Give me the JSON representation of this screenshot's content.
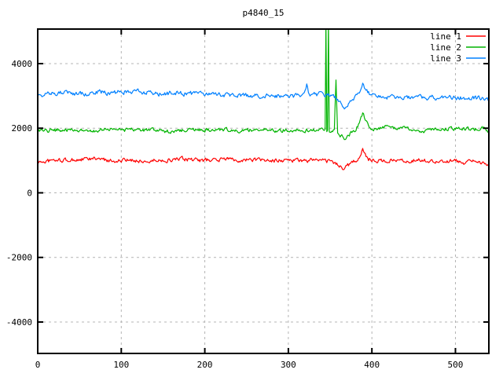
{
  "title": "p4840_15",
  "chart_data": {
    "type": "line",
    "title": "p4840_15",
    "xlabel": "",
    "ylabel": "",
    "xlim": [
      0,
      540
    ],
    "ylim": [
      -4973,
      5070
    ],
    "x_ticks": [
      0,
      100,
      200,
      300,
      400,
      500
    ],
    "y_ticks": [
      -4000,
      -2000,
      0,
      2000,
      4000
    ],
    "grid": true,
    "legend_position": "top-right-inside",
    "background": "#ffffff",
    "grid_color": "#b4b4b4",
    "border_color": "#000000",
    "series": [
      {
        "name": "line 1",
        "color": "#ff0000",
        "noise": 55,
        "keypoints": [
          [
            0,
            950
          ],
          [
            20,
            1000
          ],
          [
            40,
            1010
          ],
          [
            60,
            1040
          ],
          [
            70,
            1060
          ],
          [
            80,
            1010
          ],
          [
            100,
            990
          ],
          [
            120,
            1010
          ],
          [
            130,
            960
          ],
          [
            140,
            1000
          ],
          [
            160,
            1020
          ],
          [
            175,
            1040
          ],
          [
            190,
            1010
          ],
          [
            200,
            1000
          ],
          [
            215,
            1030
          ],
          [
            230,
            1050
          ],
          [
            245,
            1010
          ],
          [
            260,
            1030
          ],
          [
            270,
            990
          ],
          [
            285,
            1000
          ],
          [
            300,
            1020
          ],
          [
            310,
            990
          ],
          [
            320,
            1010
          ],
          [
            330,
            1000
          ],
          [
            340,
            1000
          ],
          [
            350,
            970
          ],
          [
            358,
            900
          ],
          [
            363,
            800
          ],
          [
            367,
            740
          ],
          [
            371,
            830
          ],
          [
            376,
            950
          ],
          [
            381,
            1000
          ],
          [
            386,
            1150
          ],
          [
            389,
            1420
          ],
          [
            392,
            1180
          ],
          [
            396,
            1050
          ],
          [
            400,
            1010
          ],
          [
            410,
            1000
          ],
          [
            425,
            1020
          ],
          [
            440,
            1000
          ],
          [
            455,
            1010
          ],
          [
            470,
            990
          ],
          [
            485,
            1000
          ],
          [
            500,
            970
          ],
          [
            510,
            940
          ],
          [
            520,
            960
          ],
          [
            530,
            930
          ],
          [
            536,
            950
          ],
          [
            540,
            870
          ]
        ]
      },
      {
        "name": "line 2",
        "color": "#00b400",
        "noise": 52,
        "keypoints": [
          [
            0,
            1880
          ],
          [
            15,
            1930
          ],
          [
            30,
            1950
          ],
          [
            45,
            1920
          ],
          [
            60,
            1900
          ],
          [
            75,
            1950
          ],
          [
            90,
            1970
          ],
          [
            105,
            1940
          ],
          [
            120,
            1960
          ],
          [
            135,
            1930
          ],
          [
            150,
            1900
          ],
          [
            165,
            1930
          ],
          [
            180,
            1950
          ],
          [
            195,
            1940
          ],
          [
            210,
            1930
          ],
          [
            225,
            1960
          ],
          [
            240,
            1940
          ],
          [
            255,
            1950
          ],
          [
            270,
            1970
          ],
          [
            285,
            1930
          ],
          [
            300,
            1950
          ],
          [
            315,
            1960
          ],
          [
            325,
            1930
          ],
          [
            335,
            1940
          ],
          [
            344,
            1930
          ],
          [
            345,
            5300
          ],
          [
            346,
            1900
          ],
          [
            347,
            1930
          ],
          [
            348,
            5300
          ],
          [
            349,
            1880
          ],
          [
            352,
            1900
          ],
          [
            355,
            1930
          ],
          [
            357,
            3490
          ],
          [
            359,
            1850
          ],
          [
            363,
            1780
          ],
          [
            367,
            1660
          ],
          [
            371,
            1750
          ],
          [
            375,
            1850
          ],
          [
            380,
            1950
          ],
          [
            385,
            2150
          ],
          [
            389,
            2480
          ],
          [
            392,
            2250
          ],
          [
            396,
            2050
          ],
          [
            400,
            2000
          ],
          [
            408,
            1980
          ],
          [
            416,
            2060
          ],
          [
            424,
            2010
          ],
          [
            432,
            1990
          ],
          [
            440,
            1980
          ],
          [
            450,
            1940
          ],
          [
            460,
            1900
          ],
          [
            470,
            1950
          ],
          [
            480,
            1990
          ],
          [
            490,
            2000
          ],
          [
            500,
            1990
          ],
          [
            510,
            1975
          ],
          [
            520,
            1950
          ],
          [
            528,
            1990
          ],
          [
            534,
            2000
          ],
          [
            540,
            1860
          ]
        ]
      },
      {
        "name": "line 3",
        "color": "#0080ff",
        "noise": 62,
        "keypoints": [
          [
            0,
            3020
          ],
          [
            15,
            3060
          ],
          [
            30,
            3090
          ],
          [
            45,
            3060
          ],
          [
            60,
            3080
          ],
          [
            75,
            3120
          ],
          [
            90,
            3100
          ],
          [
            105,
            3130
          ],
          [
            120,
            3140
          ],
          [
            135,
            3090
          ],
          [
            150,
            3070
          ],
          [
            165,
            3090
          ],
          [
            180,
            3070
          ],
          [
            195,
            3060
          ],
          [
            210,
            3050
          ],
          [
            225,
            3040
          ],
          [
            240,
            3010
          ],
          [
            255,
            3000
          ],
          [
            270,
            3010
          ],
          [
            285,
            2990
          ],
          [
            300,
            2980
          ],
          [
            310,
            3000
          ],
          [
            318,
            3010
          ],
          [
            322,
            3350
          ],
          [
            325,
            3030
          ],
          [
            330,
            3020
          ],
          [
            336,
            3050
          ],
          [
            342,
            3080
          ],
          [
            347,
            3020
          ],
          [
            352,
            2990
          ],
          [
            357,
            2950
          ],
          [
            362,
            2850
          ],
          [
            367,
            2620
          ],
          [
            371,
            2690
          ],
          [
            375,
            2850
          ],
          [
            380,
            2990
          ],
          [
            384,
            3060
          ],
          [
            389,
            3390
          ],
          [
            393,
            3180
          ],
          [
            397,
            3060
          ],
          [
            402,
            3000
          ],
          [
            410,
            2980
          ],
          [
            420,
            2950
          ],
          [
            430,
            2970
          ],
          [
            440,
            2960
          ],
          [
            450,
            2980
          ],
          [
            460,
            2950
          ],
          [
            470,
            2960
          ],
          [
            480,
            2940
          ],
          [
            490,
            2960
          ],
          [
            500,
            2930
          ],
          [
            510,
            2950
          ],
          [
            520,
            2920
          ],
          [
            530,
            2940
          ],
          [
            535,
            2890
          ],
          [
            540,
            2840
          ]
        ]
      }
    ]
  }
}
